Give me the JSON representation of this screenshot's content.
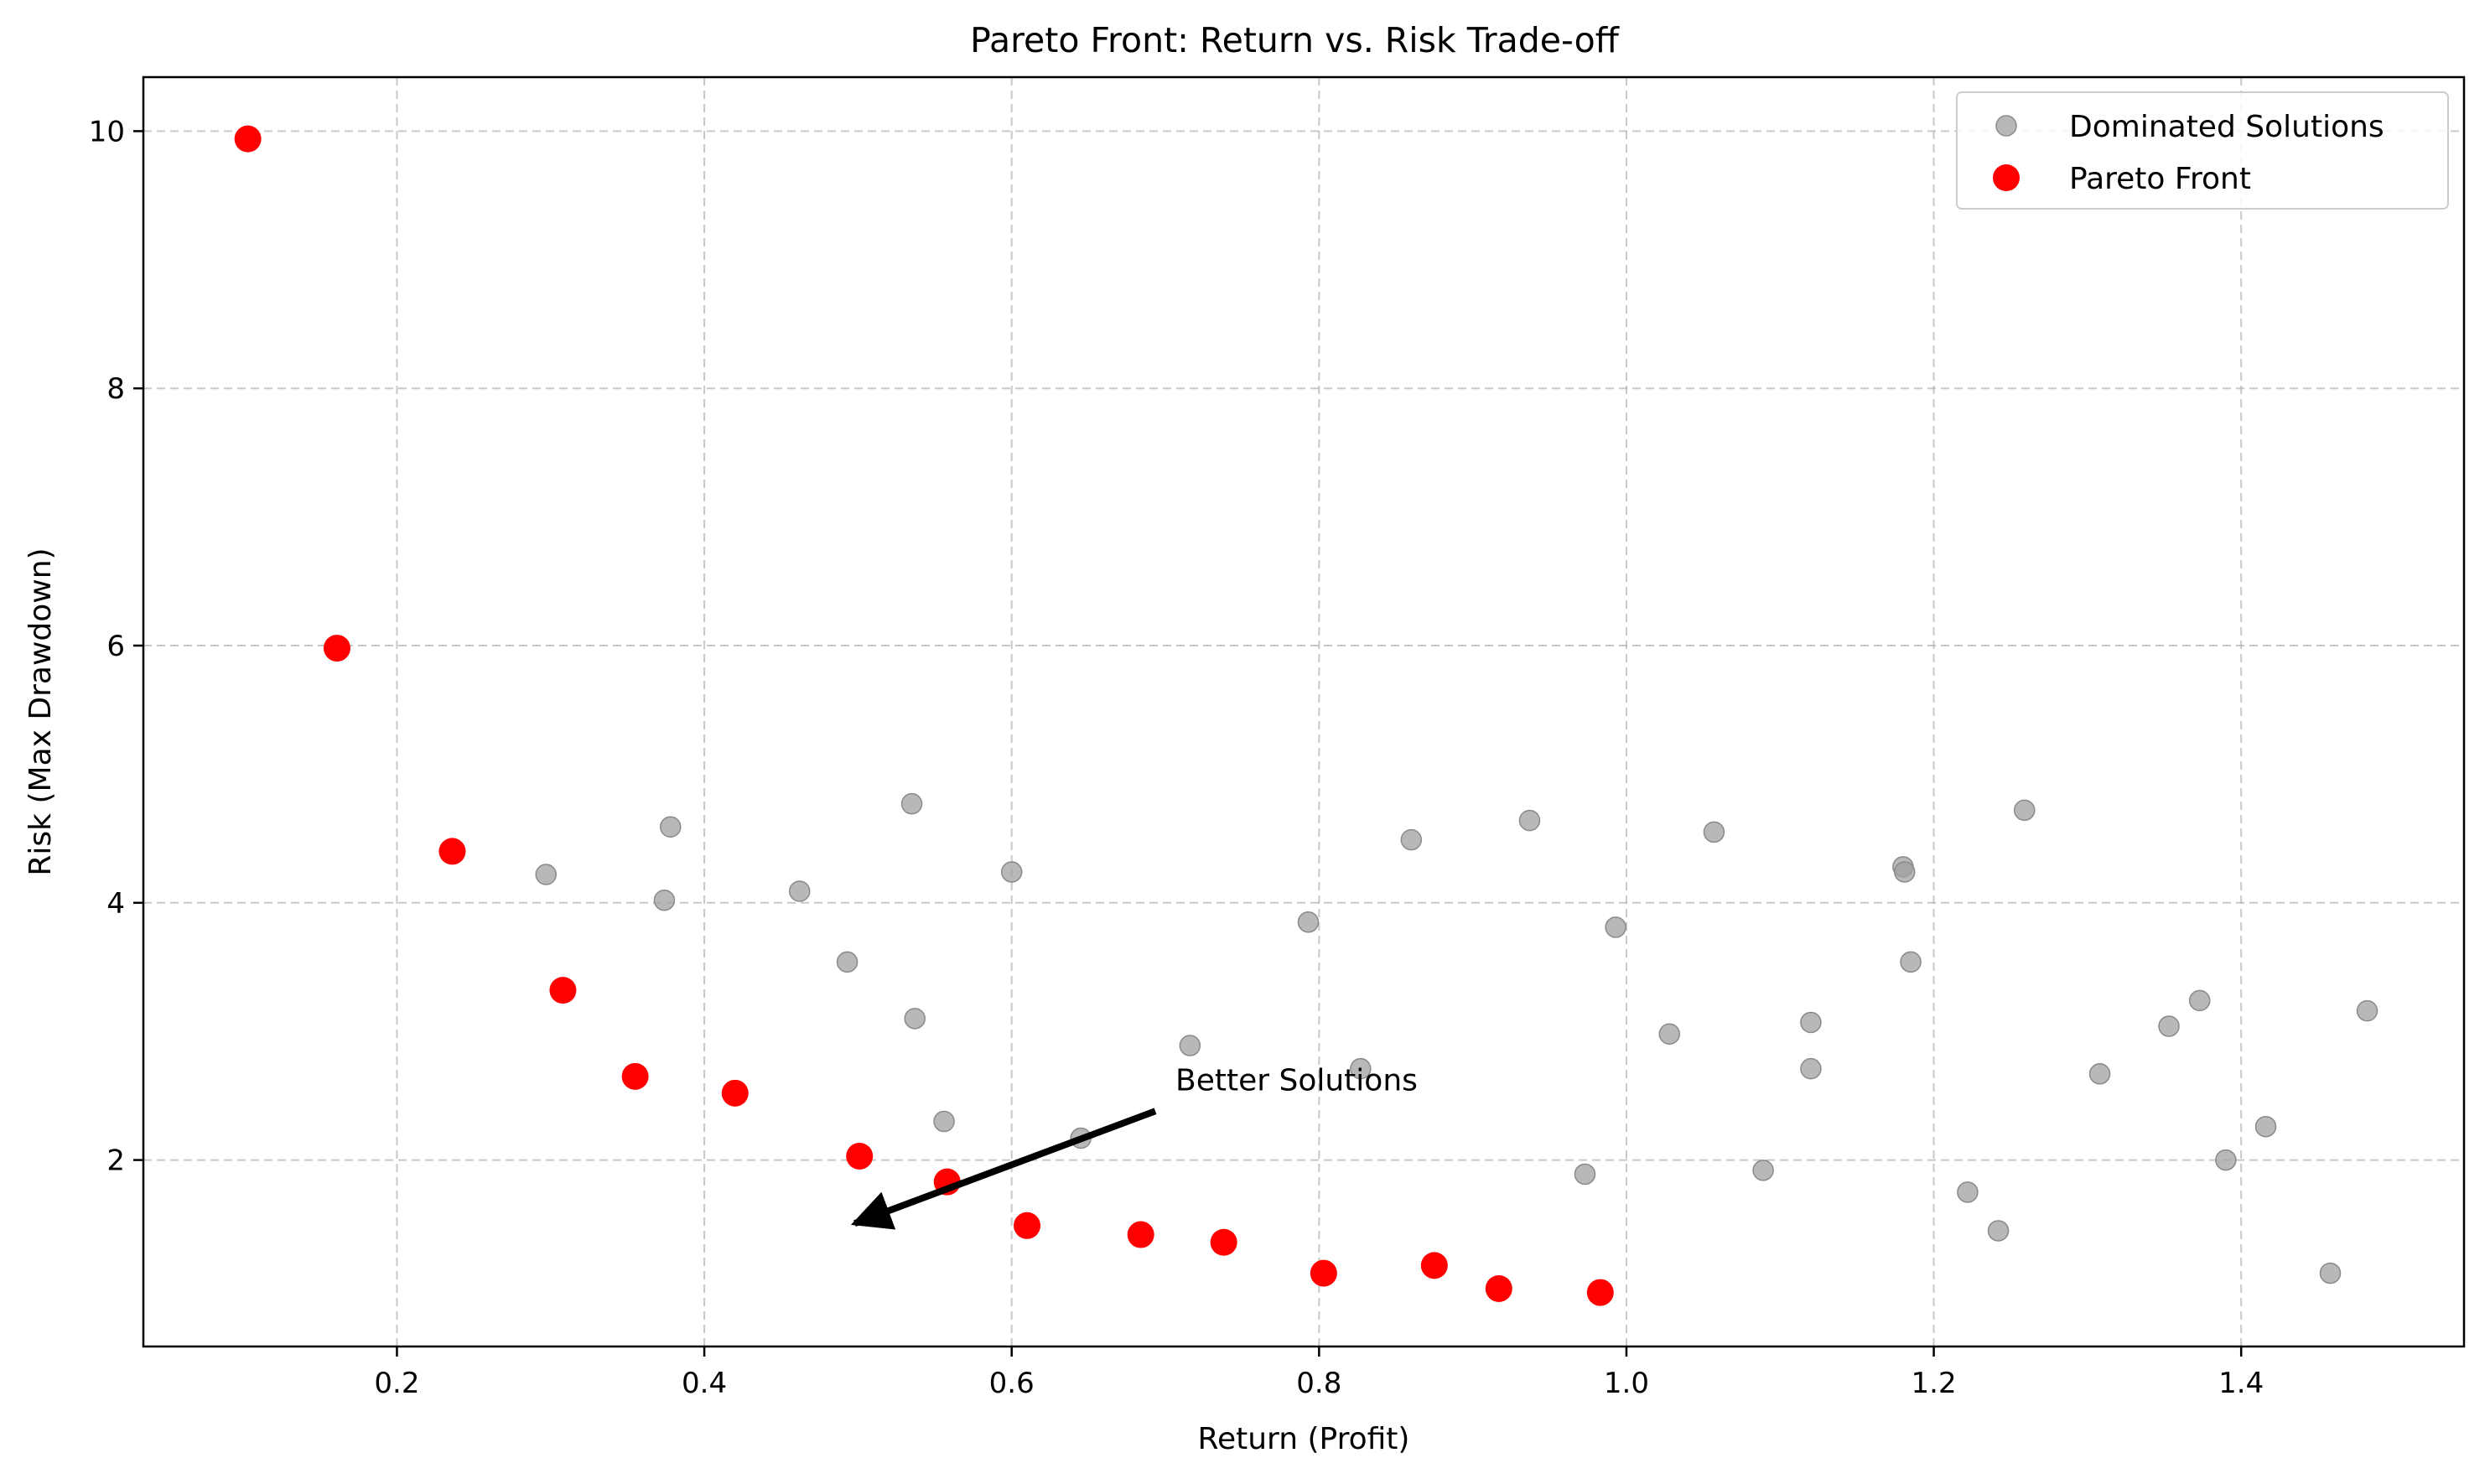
{
  "chart_data": {
    "type": "scatter",
    "title": "Pareto Front: Return vs. Risk Trade-off",
    "xlabel": "Return (Profit)",
    "ylabel": "Risk (Max Drawdown)",
    "xlim": [
      0.035,
      1.545
    ],
    "ylim": [
      0.55,
      10.42
    ],
    "xticks": [
      0.2,
      0.4,
      0.6,
      0.8,
      1.0,
      1.2,
      1.4
    ],
    "xtick_labels": [
      "0.2",
      "0.4",
      "0.6",
      "0.8",
      "1.0",
      "1.2",
      "1.4"
    ],
    "yticks": [
      2,
      4,
      6,
      8,
      10
    ],
    "ytick_labels": [
      "2",
      "4",
      "6",
      "8",
      "10"
    ],
    "grid": true,
    "legend_position": "top-right",
    "series": [
      {
        "name": "Dominated Solutions",
        "color": "#a0a0a0",
        "points": [
          [
            0.297,
            4.22
          ],
          [
            0.374,
            4.02
          ],
          [
            0.378,
            4.59
          ],
          [
            0.462,
            4.09
          ],
          [
            0.493,
            3.54
          ],
          [
            0.535,
            4.77
          ],
          [
            0.537,
            3.1
          ],
          [
            0.556,
            2.3
          ],
          [
            0.6,
            4.24
          ],
          [
            0.645,
            2.17
          ],
          [
            0.716,
            2.89
          ],
          [
            0.793,
            3.85
          ],
          [
            0.827,
            2.71
          ],
          [
            0.86,
            4.49
          ],
          [
            0.937,
            4.64
          ],
          [
            0.973,
            1.89
          ],
          [
            0.993,
            3.81
          ],
          [
            1.028,
            2.98
          ],
          [
            1.057,
            4.55
          ],
          [
            1.089,
            1.92
          ],
          [
            1.12,
            3.07
          ],
          [
            1.12,
            2.71
          ],
          [
            1.18,
            4.28
          ],
          [
            1.181,
            4.24
          ],
          [
            1.185,
            3.54
          ],
          [
            1.222,
            1.75
          ],
          [
            1.242,
            1.45
          ],
          [
            1.259,
            4.72
          ],
          [
            1.308,
            2.67
          ],
          [
            1.353,
            3.04
          ],
          [
            1.373,
            3.24
          ],
          [
            1.39,
            2.0
          ],
          [
            1.416,
            2.26
          ],
          [
            1.458,
            1.12
          ],
          [
            1.482,
            3.16
          ]
        ]
      },
      {
        "name": "Pareto Front",
        "color": "#ff0000",
        "points": [
          [
            0.103,
            9.94
          ],
          [
            0.161,
            5.98
          ],
          [
            0.236,
            4.4
          ],
          [
            0.308,
            3.32
          ],
          [
            0.355,
            2.65
          ],
          [
            0.42,
            2.52
          ],
          [
            0.501,
            2.03
          ],
          [
            0.558,
            1.83
          ],
          [
            0.61,
            1.49
          ],
          [
            0.684,
            1.42
          ],
          [
            0.738,
            1.36
          ],
          [
            0.803,
            1.12
          ],
          [
            0.875,
            1.18
          ],
          [
            0.917,
            1.0
          ],
          [
            0.983,
            0.97
          ]
        ]
      }
    ],
    "annotation": {
      "text": "Better Solutions",
      "text_at": [
        0.7,
        2.54
      ],
      "arrow_from": [
        0.7,
        2.38
      ],
      "arrow_to": [
        0.5,
        1.52
      ]
    }
  }
}
